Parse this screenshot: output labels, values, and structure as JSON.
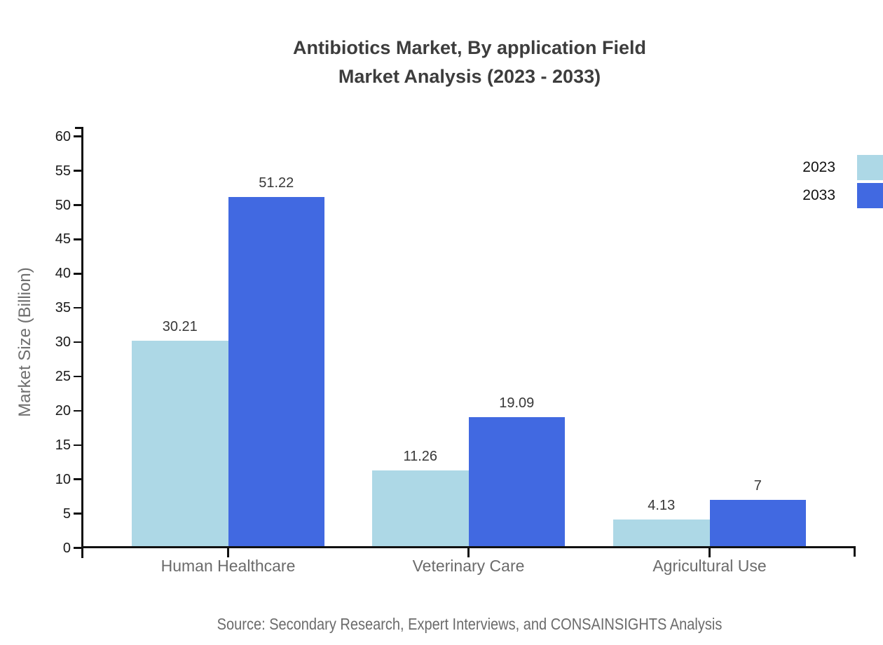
{
  "title": {
    "line1": "Antibiotics Market, By application Field",
    "line2": "Market Analysis (2023 - 2033)"
  },
  "chart_data": {
    "type": "bar",
    "categories": [
      "Human Healthcare",
      "Veterinary Care",
      "Agricultural Use"
    ],
    "series": [
      {
        "name": "2023",
        "color": "#ADD8E6",
        "values": [
          30.21,
          11.26,
          4.13
        ],
        "labels": [
          "30.21",
          "11.26",
          "4.13"
        ]
      },
      {
        "name": "2033",
        "color": "#4169E1",
        "values": [
          51.22,
          19.09,
          7
        ],
        "labels": [
          "51.22",
          "19.09",
          "7"
        ]
      }
    ],
    "xlabel": "",
    "ylabel": "Market Size (Billion)",
    "ylim": [
      0,
      60
    ],
    "ytick_step": 5,
    "ytick_labels": [
      "0",
      "5",
      "10",
      "15",
      "20",
      "25",
      "30",
      "35",
      "40",
      "45",
      "50",
      "55",
      "60"
    ],
    "grid": false,
    "legend_position": "upper-right",
    "bar_value_labels": true
  },
  "source": "Source: Secondary Research, Expert Interviews, and CONSAINSIGHTS Analysis"
}
